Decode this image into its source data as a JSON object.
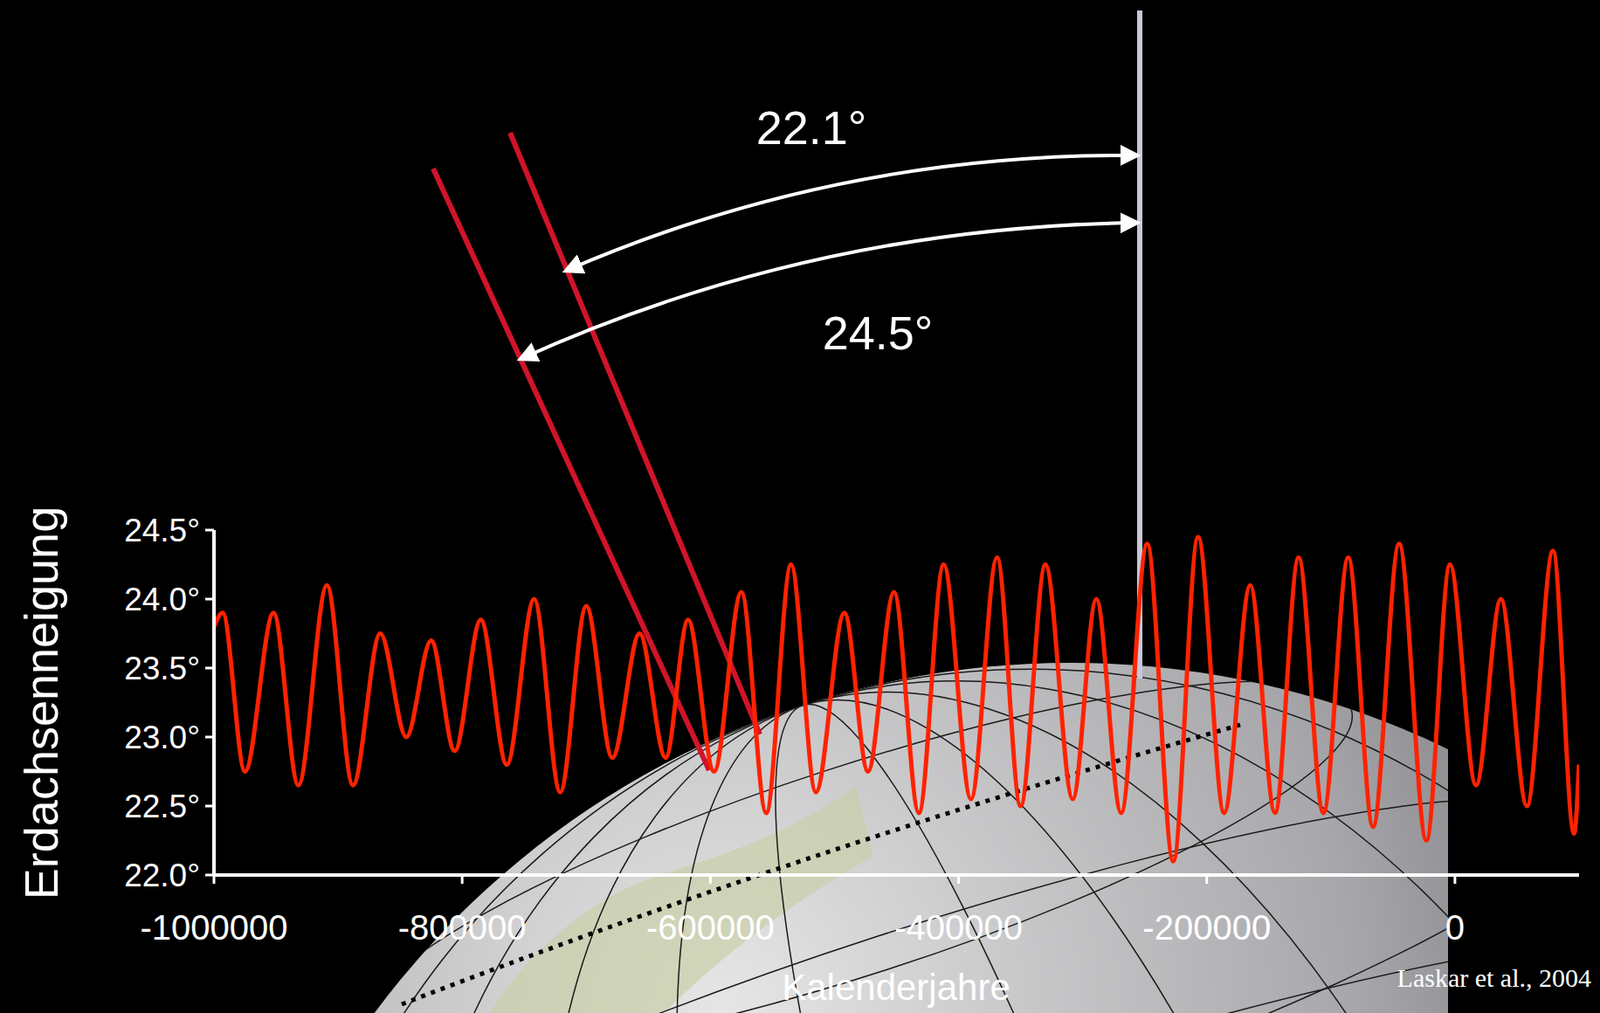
{
  "chart_data": {
    "type": "line",
    "x_label": "Kalenderjahre",
    "y_label": "Erdachsenneigung",
    "source": "Laskar et al., 2004",
    "annotations": [
      "22.1°",
      "24.5°"
    ],
    "x": [
      -1000000,
      -993000,
      -975000,
      -952000,
      -932000,
      -909000,
      -888000,
      -866000,
      -845000,
      -825000,
      -806000,
      -785000,
      -764000,
      -742000,
      -721000,
      -700000,
      -679000,
      -657000,
      -636000,
      -618000,
      -597000,
      -575000,
      -555000,
      -535000,
      -515000,
      -492000,
      -473000,
      -452000,
      -432000,
      -412000,
      -390000,
      -369000,
      -350000,
      -330000,
      -308000,
      -289000,
      -269000,
      -248000,
      -227000,
      -207000,
      -186000,
      -165000,
      -145000,
      -126000,
      -106000,
      -86000,
      -66000,
      -45000,
      -23000,
      -4000,
      17000,
      37000,
      58000,
      79000,
      96000,
      100000
    ],
    "series": [
      {
        "name": "Erdachsenneigung",
        "color": "#ff2200",
        "values": [
          23.8,
          23.9,
          22.75,
          23.9,
          22.65,
          24.1,
          22.65,
          23.75,
          23.0,
          23.7,
          22.9,
          23.85,
          22.8,
          24.0,
          22.6,
          23.95,
          22.85,
          23.75,
          22.85,
          23.85,
          22.75,
          24.05,
          22.45,
          24.25,
          22.6,
          23.9,
          22.75,
          24.05,
          22.45,
          24.25,
          22.55,
          24.3,
          22.5,
          24.25,
          22.55,
          24.0,
          22.45,
          24.4,
          22.1,
          24.45,
          22.45,
          24.1,
          22.45,
          24.3,
          22.45,
          24.3,
          22.35,
          24.4,
          22.25,
          24.25,
          22.65,
          24.0,
          22.5,
          24.35,
          22.3,
          22.8
        ]
      }
    ],
    "xlim": [
      -1000000,
      100000
    ],
    "xticks": [
      -1000000,
      -800000,
      -600000,
      -400000,
      -200000,
      0
    ],
    "ylim": [
      22,
      24.5
    ],
    "yticks": [
      {
        "value": 22,
        "label": "22.0°"
      },
      {
        "value": 22.5,
        "label": "22.5°"
      },
      {
        "value": 23,
        "label": "23.0°"
      },
      {
        "value": 23.5,
        "label": "23.5°"
      },
      {
        "value": 24,
        "label": "24.0°"
      },
      {
        "value": 24.5,
        "label": "24.5°"
      }
    ],
    "grid": false
  }
}
